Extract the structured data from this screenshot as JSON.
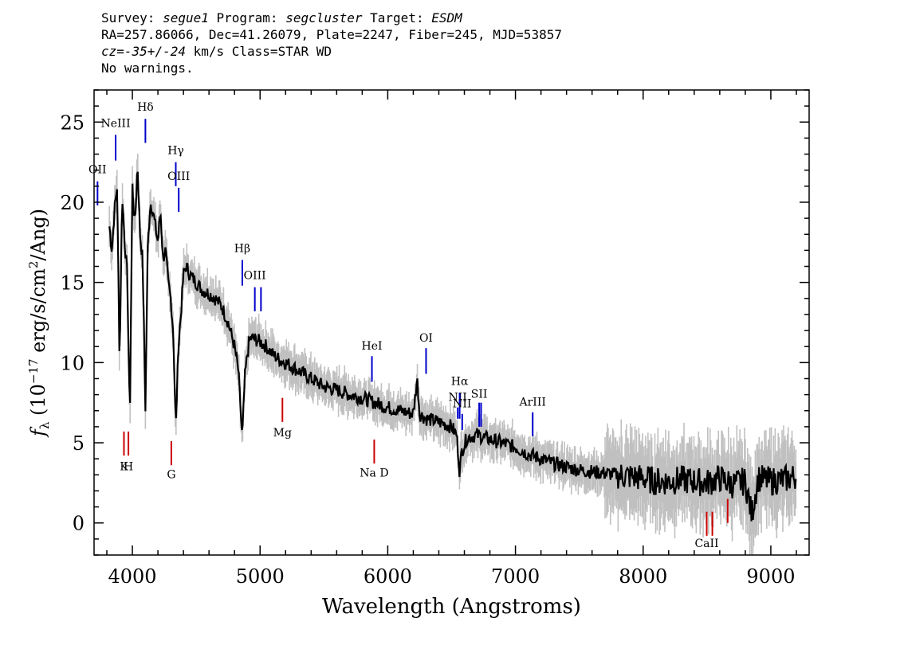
{
  "header": {
    "line1": {
      "survey_label": "Survey: ",
      "survey": "segue1",
      "program_label": " Program: ",
      "program": "segcluster",
      "target_label": " Target: ",
      "target": "ESDM"
    },
    "line2": "RA=257.86066, Dec=41.26079, Plate=2247, Fiber=245, MJD=53857",
    "line3": {
      "cz_label": "cz=",
      "cz": "-35+/-24",
      "rest": " km/s Class=STAR WD"
    },
    "line4": "No warnings."
  },
  "chart_data": {
    "type": "line",
    "xlabel": "Wavelength (Angstroms)",
    "ylabel": "f_λ (10^-17 erg/s/cm^2/Ang)",
    "xlim": [
      3700,
      9300
    ],
    "ylim": [
      -2,
      27
    ],
    "x_ticks": [
      4000,
      5000,
      6000,
      7000,
      8000,
      9000
    ],
    "y_ticks": [
      0,
      5,
      10,
      15,
      20,
      25
    ],
    "series": [
      {
        "color": "#000000",
        "x": [
          3820,
          3840,
          3860,
          3880,
          3900,
          3920,
          3940,
          3960,
          3980,
          4000,
          4020,
          4040,
          4060,
          4080,
          4102,
          4120,
          4140,
          4160,
          4180,
          4200,
          4220,
          4240,
          4260,
          4280,
          4300,
          4320,
          4340,
          4360,
          4380,
          4400,
          4420,
          4450,
          4500,
          4550,
          4600,
          4650,
          4700,
          4750,
          4800,
          4830,
          4861,
          4880,
          4900,
          4920,
          4950,
          5000,
          5050,
          5100,
          5150,
          5200,
          5300,
          5400,
          5500,
          5600,
          5700,
          5800,
          5900,
          6000,
          6100,
          6200,
          6230,
          6250,
          6300,
          6400,
          6500,
          6540,
          6563,
          6580,
          6620,
          6700,
          6800,
          6900,
          7000,
          7100,
          7200,
          7300,
          7400,
          7500,
          7600,
          7700,
          7800,
          7900,
          8000,
          8100,
          8200,
          8300,
          8400,
          8500,
          8600,
          8700,
          8800,
          8850,
          8900,
          9000,
          9100,
          9200
        ],
        "y": [
          18.5,
          17.0,
          19.5,
          21.0,
          10.0,
          20.5,
          17.5,
          15.5,
          6.3,
          21.0,
          18.5,
          22.5,
          18.0,
          16.5,
          7.2,
          17.0,
          20.0,
          19.5,
          18.5,
          17.5,
          19.5,
          16.5,
          17.0,
          15.0,
          14.0,
          12.0,
          5.8,
          11.0,
          13.0,
          15.5,
          16.0,
          15.5,
          15.0,
          14.5,
          14.3,
          14.0,
          13.5,
          12.5,
          11.0,
          9.5,
          5.2,
          9.0,
          10.5,
          11.5,
          11.5,
          11.3,
          11.0,
          10.5,
          10.2,
          10.0,
          9.5,
          9.0,
          8.5,
          8.3,
          8.0,
          7.8,
          7.5,
          7.2,
          7.0,
          6.8,
          9.0,
          6.8,
          6.5,
          6.3,
          6.0,
          5.5,
          3.2,
          4.5,
          5.3,
          5.5,
          5.2,
          5.0,
          4.7,
          4.3,
          4.0,
          3.7,
          3.5,
          3.3,
          3.2,
          3.1,
          3.0,
          2.9,
          2.8,
          2.6,
          2.6,
          2.7,
          2.6,
          2.5,
          2.8,
          2.4,
          2.6,
          0.5,
          2.8,
          2.6,
          2.7,
          2.9
        ]
      }
    ],
    "error_band": {
      "color": "#c0c0c0",
      "sigma": 0.8
    },
    "emission_lines": [
      {
        "label": "OII",
        "x": 3727,
        "color": "#0000cc",
        "y0": 19.8,
        "y1": 21.3,
        "label_y": 21.8
      },
      {
        "label": "NeIII",
        "x": 3869,
        "color": "#0000cc",
        "y0": 22.6,
        "y1": 24.2,
        "label_y": 24.7
      },
      {
        "label": "Hδ",
        "x": 4102,
        "color": "#0000cc",
        "y0": 23.7,
        "y1": 25.2,
        "label_y": 25.7
      },
      {
        "label": "Hγ",
        "x": 4340,
        "color": "#0000cc",
        "y0": 21.0,
        "y1": 22.5,
        "label_y": 23.0
      },
      {
        "label": "OIII",
        "x": 4363,
        "color": "#0000cc",
        "y0": 19.4,
        "y1": 20.9,
        "label_y": 21.4
      },
      {
        "label": "Hβ",
        "x": 4861,
        "color": "#0000cc",
        "y0": 14.8,
        "y1": 16.4,
        "label_y": 16.9
      },
      {
        "label": "OIII",
        "x": 4959,
        "color": "#0000cc",
        "y0": 13.2,
        "y1": 14.7,
        "label_y": 15.2
      },
      {
        "label": "",
        "x": 5007,
        "color": "#0000cc",
        "y0": 13.2,
        "y1": 14.7,
        "label_y": 15.2
      },
      {
        "label": "HeI",
        "x": 5876,
        "color": "#0000cc",
        "y0": 8.8,
        "y1": 10.4,
        "label_y": 10.8
      },
      {
        "label": "OI",
        "x": 6300,
        "color": "#0000cc",
        "y0": 9.3,
        "y1": 10.9,
        "label_y": 11.3
      },
      {
        "label": "NII",
        "x": 6548,
        "color": "#0000cc",
        "y0": 6.5,
        "y1": 7.2,
        "label_y": 7.6
      },
      {
        "label": "Hα",
        "x": 6563,
        "color": "#0000cc",
        "y0": 6.5,
        "y1": 8.1,
        "label_y": 8.6
      },
      {
        "label": "NII",
        "x": 6583,
        "color": "#0000cc",
        "y0": 5.8,
        "y1": 6.8,
        "label_y": 7.2
      },
      {
        "label": "SII",
        "x": 6716,
        "color": "#0000cc",
        "y0": 6.0,
        "y1": 7.5,
        "label_y": 7.8
      },
      {
        "label": "",
        "x": 6731,
        "color": "#0000cc",
        "y0": 6.0,
        "y1": 7.5,
        "label_y": 7.8
      },
      {
        "label": "ArIII",
        "x": 7135,
        "color": "#0000cc",
        "y0": 5.4,
        "y1": 6.9,
        "label_y": 7.3
      }
    ],
    "absorption_lines": [
      {
        "label": "K",
        "x": 3934,
        "color": "#cc0000",
        "y0": 4.2,
        "y1": 5.7,
        "label_y": 3.3
      },
      {
        "label": "H",
        "x": 3969,
        "color": "#cc0000",
        "y0": 4.2,
        "y1": 5.7,
        "label_y": 3.3
      },
      {
        "label": "G",
        "x": 4305,
        "color": "#cc0000",
        "y0": 3.6,
        "y1": 5.1,
        "label_y": 2.8
      },
      {
        "label": "Mg",
        "x": 5175,
        "color": "#cc0000",
        "y0": 6.3,
        "y1": 7.8,
        "label_y": 5.4
      },
      {
        "label": "Na D",
        "x": 5894,
        "color": "#cc0000",
        "y0": 3.7,
        "y1": 5.2,
        "label_y": 2.9
      },
      {
        "label": "CaII",
        "x": 8498,
        "color": "#cc0000",
        "y0": -0.8,
        "y1": 0.7,
        "label_y": -1.5
      },
      {
        "label": "",
        "x": 8542,
        "color": "#cc0000",
        "y0": -0.8,
        "y1": 0.7,
        "label_y": -1.5
      },
      {
        "label": "",
        "x": 8662,
        "color": "#cc0000",
        "y0": 0.0,
        "y1": 1.5,
        "label_y": -1.5
      }
    ]
  }
}
